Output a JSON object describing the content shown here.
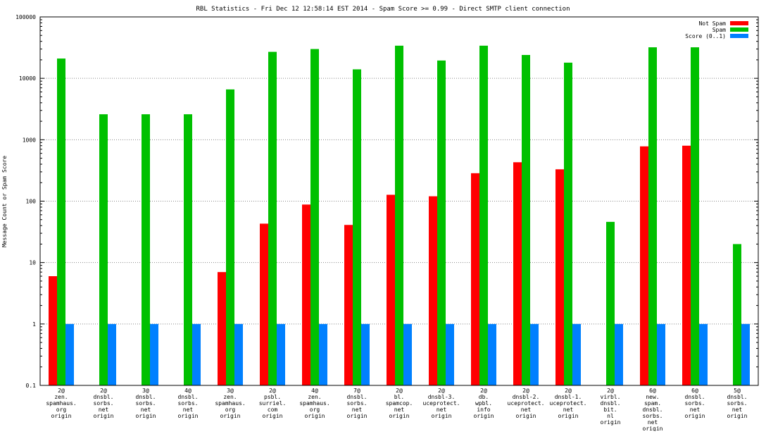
{
  "chart_data": {
    "type": "bar",
    "title": "RBL Statistics - Fri Dec 12 12:58:14 EST 2014 - Spam Score >= 0.99 - Direct SMTP client connection",
    "xlabel": "",
    "ylabel": "Message Count or Spam Score",
    "yscale": "log",
    "ylim": [
      0.1,
      100000
    ],
    "yticks": [
      "0.1",
      "1",
      "10",
      "100",
      "1000",
      "10000",
      "100000"
    ],
    "grid": true,
    "legend_position": "top-right",
    "categories": [
      [
        "2@",
        "zen.",
        "spamhaus.",
        "org",
        "origin"
      ],
      [
        "2@",
        "dnsbl.",
        "sorbs.",
        "net",
        "origin"
      ],
      [
        "3@",
        "dnsbl.",
        "sorbs.",
        "net",
        "origin"
      ],
      [
        "4@",
        "dnsbl.",
        "sorbs.",
        "net",
        "origin"
      ],
      [
        "3@",
        "zen.",
        "spamhaus.",
        "org",
        "origin"
      ],
      [
        "2@",
        "psbl.",
        "surriel.",
        "com",
        "origin"
      ],
      [
        "4@",
        "zen.",
        "spamhaus.",
        "org",
        "origin"
      ],
      [
        "7@",
        "dnsbl.",
        "sorbs.",
        "net",
        "origin"
      ],
      [
        "2@",
        "bl.",
        "spamcop.",
        "net",
        "origin"
      ],
      [
        "2@",
        "dnsbl-3.",
        "uceprotect.",
        "net",
        "origin"
      ],
      [
        "2@",
        "db.",
        "wpbl.",
        "info",
        "origin"
      ],
      [
        "2@",
        "dnsbl-2.",
        "uceprotect.",
        "net",
        "origin"
      ],
      [
        "2@",
        "dnsbl-1.",
        "uceprotect.",
        "net",
        "origin"
      ],
      [
        "2@",
        "virbl.",
        "dnsbl.",
        "bit.",
        "nl",
        "origin"
      ],
      [
        "6@",
        "new.",
        "spam.",
        "dnsbl.",
        "sorbs.",
        "net",
        "origin"
      ],
      [
        "6@",
        "dnsbl.",
        "sorbs.",
        "net",
        "origin"
      ],
      [
        "5@",
        "dnsbl.",
        "sorbs.",
        "net",
        "origin"
      ]
    ],
    "series": [
      {
        "name": "Not Spam",
        "color": "#ff0000",
        "values": [
          6,
          null,
          null,
          null,
          7,
          43,
          88,
          41,
          127,
          120,
          285,
          430,
          330,
          null,
          780,
          800,
          null
        ]
      },
      {
        "name": "Spam",
        "color": "#00c000",
        "values": [
          21000,
          2600,
          2600,
          2600,
          6600,
          27000,
          30000,
          14000,
          34000,
          19500,
          34000,
          24000,
          18000,
          46,
          32000,
          32000,
          20
        ]
      },
      {
        "name": "Score (0..1)",
        "color": "#0080ff",
        "values": [
          1,
          1,
          1,
          1,
          1,
          1,
          1,
          1,
          1,
          1,
          1,
          1,
          1,
          1,
          1,
          1,
          1
        ]
      }
    ]
  }
}
